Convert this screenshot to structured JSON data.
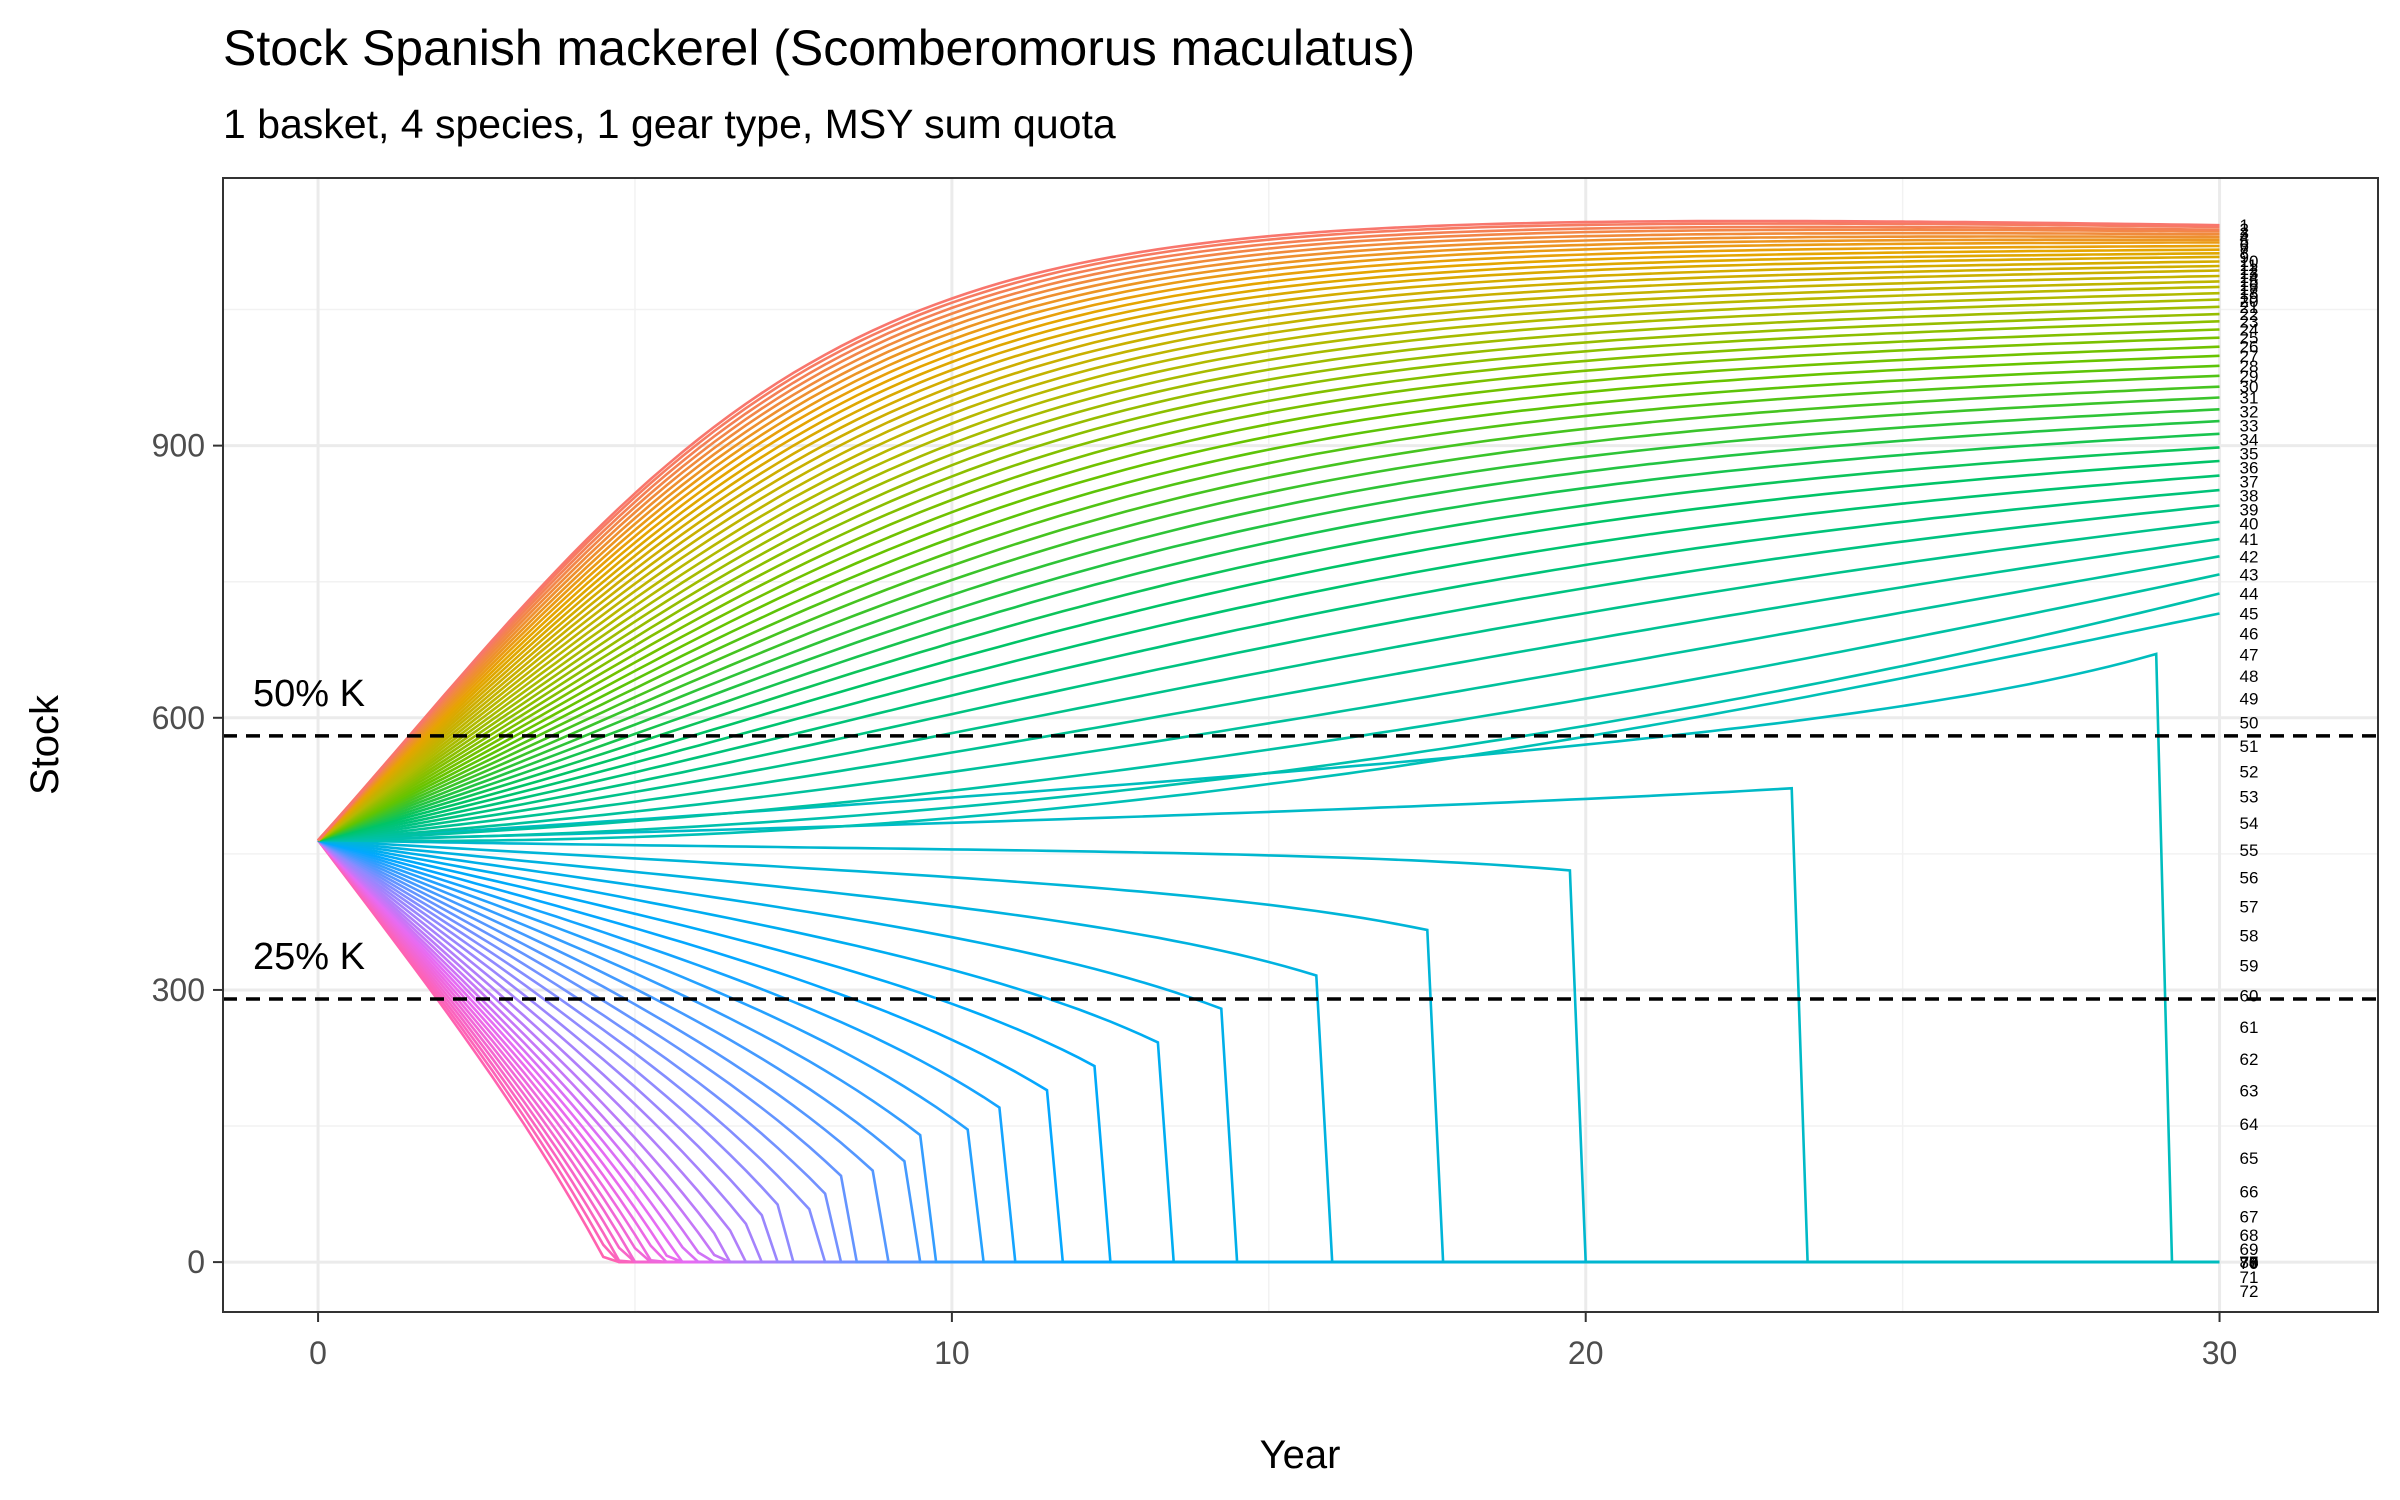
{
  "chart_data": {
    "type": "line",
    "title": "Stock Spanish mackerel (Scomberomorus maculatus)",
    "subtitle": "1 basket, 4 species, 1 gear type, MSY sum quota",
    "xlabel": "Year",
    "ylabel": "Stock",
    "xlim": [
      -1.5,
      32.5
    ],
    "ylim": [
      -55,
      1195
    ],
    "x_ticks": [
      0,
      10,
      20,
      30
    ],
    "y_ticks": [
      0,
      300,
      600,
      900
    ],
    "grid": true,
    "legend": "none; series labels printed at the right end of each line",
    "series_count": 80,
    "series_labels": [
      "1",
      "2",
      "3",
      "4",
      "5",
      "6",
      "7",
      "8",
      "9",
      "10",
      "11",
      "12",
      "13",
      "14",
      "15",
      "16",
      "17",
      "18",
      "19",
      "20",
      "21",
      "22",
      "23",
      "24",
      "25",
      "26",
      "27",
      "28",
      "29",
      "30",
      "31",
      "32",
      "33",
      "34",
      "35",
      "36",
      "37",
      "38",
      "39",
      "40",
      "41",
      "42",
      "43",
      "44",
      "45",
      "46",
      "47",
      "48",
      "49",
      "50",
      "51",
      "52",
      "53",
      "54",
      "55",
      "56",
      "57",
      "58",
      "59",
      "60",
      "61",
      "62",
      "63",
      "64",
      "65",
      "66",
      "67",
      "68",
      "69",
      "70",
      "71",
      "72",
      "73",
      "74",
      "75",
      "76",
      "77",
      "78",
      "79",
      "80"
    ],
    "series_colors": [
      "#f8766d",
      "#e6a400",
      "#b5b900",
      "#65c400",
      "#00c468",
      "#00c0b5",
      "#00a8ff",
      "#8a8cff",
      "#e76bf3",
      "#ff62b0"
    ],
    "initial_stock": 465,
    "x": [
      0,
      30
    ],
    "end_values": [
      1143,
      1141,
      1138,
      1136,
      1133,
      1130,
      1127,
      1124,
      1120,
      1116,
      1112,
      1108,
      1103,
      1098,
      1093,
      1087,
      1081,
      1075,
      1068,
      1061,
      1053,
      1045,
      1037,
      1028,
      1019,
      1009,
      999,
      988,
      977,
      965,
      953,
      940,
      927,
      913,
      898,
      883,
      867,
      851,
      834,
      816,
      797,
      778,
      758,
      737,
      715,
      693,
      670,
      646,
      621,
      595,
      569,
      541,
      513,
      484,
      454,
      424,
      392,
      360,
      327,
      294,
      259,
      224,
      189,
      152,
      115,
      78,
      50,
      30,
      15,
      7,
      3,
      1,
      0,
      0,
      0,
      0,
      0,
      0,
      0,
      0
    ],
    "reference_lines": [
      {
        "label": "50% K",
        "y": 580
      },
      {
        "label": "25% K",
        "y": 290
      }
    ]
  }
}
